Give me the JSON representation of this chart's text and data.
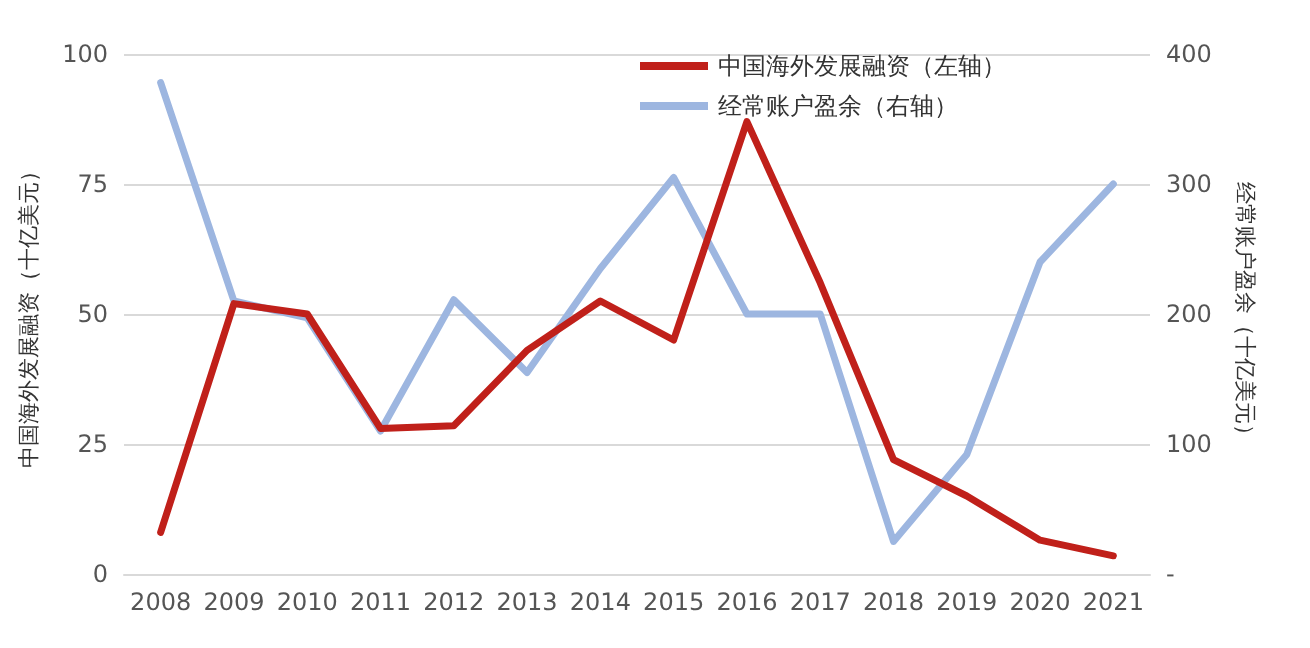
{
  "chart_data": {
    "type": "line",
    "categories": [
      "2008",
      "2009",
      "2010",
      "2011",
      "2012",
      "2013",
      "2014",
      "2015",
      "2016",
      "2017",
      "2018",
      "2019",
      "2020",
      "2021"
    ],
    "ylabel": "中国海外发展融资（十亿美元）",
    "y2label": "经常账户盈余（十亿美元）",
    "series": [
      {
        "name": "中国海外发展融资（左轴）",
        "color": "#c0201a",
        "values": [
          8,
          52,
          50,
          28,
          28.5,
          43,
          52.5,
          45,
          87,
          56,
          22,
          15,
          6.5,
          3.5
        ]
      },
      {
        "name": "经常账户盈余（右轴）",
        "color": "#9db6e0",
        "axis": "y2",
        "values": [
          378,
          210,
          197,
          110,
          211,
          155,
          235,
          305,
          200,
          200,
          25,
          92,
          240,
          300
        ]
      }
    ],
    "ylim": [
      0,
      100
    ],
    "yticks": [
      0,
      25,
      50,
      75,
      100
    ],
    "y2lim": [
      0,
      400
    ],
    "y2ticks": [
      {
        "value": 0,
        "label": "-"
      },
      100,
      200,
      300,
      400
    ],
    "grid": "y",
    "legend": "top",
    "marker": "none",
    "line_style": "solid"
  }
}
